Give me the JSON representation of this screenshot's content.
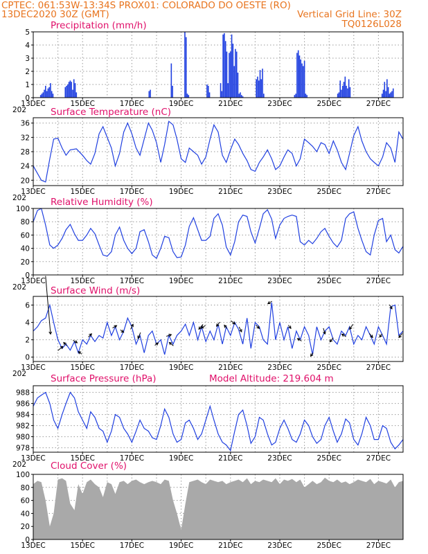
{
  "header": {
    "left_line1": "CPTEC:   061:53W-13:34S   PROX01: COLORADO DO OESTE (RO)",
    "left_line2": "13DEC2020 30Z (GMT)",
    "right_line2": "Vertical Grid Line: 30Z",
    "right_line3": "TQ0126L028"
  },
  "colors": {
    "header": "#e8741e",
    "panel_title": "#e0106a",
    "series": "#1f3fe0",
    "cloud": "#a9a9a9",
    "arrows": "#000000"
  },
  "x_axis": {
    "day_min": 13,
    "day_max": 28,
    "tick_labels": [
      "13DEC",
      "15DEC",
      "17DEC",
      "19DEC",
      "21DEC",
      "23DEC",
      "25DEC",
      "27DEC"
    ],
    "tick_days": [
      13,
      15,
      17,
      19,
      21,
      23,
      25,
      27
    ],
    "year_fragment": "202"
  },
  "chart_data": [
    {
      "type": "bar",
      "title": "Precipitation (mm/h)",
      "ylim": [
        0,
        5
      ],
      "yticks": [
        0,
        1,
        2,
        3,
        4,
        5
      ],
      "grid": true,
      "x": [
        13.3,
        13.35,
        13.4,
        13.45,
        13.5,
        13.55,
        13.6,
        13.65,
        13.7,
        13.75,
        13.8,
        14.3,
        14.35,
        14.4,
        14.45,
        14.5,
        14.55,
        14.6,
        14.65,
        14.7,
        14.75,
        17.7,
        17.75,
        18.6,
        18.65,
        19.15,
        19.2,
        19.25,
        19.3,
        20.05,
        20.1,
        20.15,
        20.6,
        20.65,
        20.7,
        20.75,
        20.8,
        20.85,
        20.9,
        20.95,
        21.0,
        21.05,
        21.1,
        21.15,
        21.2,
        21.25,
        21.3,
        21.35,
        21.4,
        21.45,
        21.5,
        22.05,
        22.1,
        22.15,
        22.2,
        22.25,
        22.3,
        22.35,
        23.6,
        23.65,
        23.7,
        23.75,
        23.8,
        23.85,
        23.9,
        23.95,
        24.0,
        24.05,
        24.1,
        25.35,
        25.4,
        25.45,
        25.5,
        25.55,
        25.6,
        25.65,
        25.7,
        25.75,
        25.8,
        25.85,
        27.15,
        27.2,
        27.25,
        27.3,
        27.35,
        27.4,
        27.45,
        27.5,
        27.55,
        27.6
      ],
      "values": [
        0.2,
        0.3,
        0.4,
        0.6,
        0.9,
        0.5,
        0.7,
        0.8,
        1.1,
        0.5,
        0.3,
        0.8,
        0.9,
        1.0,
        1.2,
        1.3,
        1.2,
        0.6,
        1.4,
        1.1,
        0.4,
        0.5,
        0.6,
        2.6,
        0.9,
        5.0,
        4.6,
        0.3,
        0.2,
        1.0,
        0.9,
        0.4,
        1.1,
        0.5,
        4.8,
        4.9,
        4.3,
        3.5,
        1.1,
        3.4,
        3.5,
        4.8,
        4.1,
        2.4,
        3.7,
        3.5,
        1.9,
        0.3,
        0.4,
        0.2,
        0.1,
        1.4,
        1.6,
        1.3,
        2.1,
        1.4,
        2.2,
        0.3,
        0.2,
        0.3,
        3.4,
        3.6,
        3.2,
        2.9,
        2.6,
        2.4,
        2.8,
        0.3,
        0.2,
        0.3,
        0.4,
        1.3,
        0.6,
        0.9,
        1.2,
        1.6,
        0.9,
        0.7,
        1.4,
        0.8,
        0.3,
        0.6,
        1.2,
        0.5,
        1.4,
        0.8,
        0.3,
        0.4,
        0.5,
        0.7
      ]
    },
    {
      "type": "line",
      "title": "Surface Temperature (nC)",
      "ylim": [
        18.5,
        37.5
      ],
      "yticks": [
        20,
        24,
        28,
        32,
        36
      ],
      "grid": true,
      "x": [
        13.0,
        13.33,
        13.5,
        13.67,
        13.83,
        14.0,
        14.17,
        14.33,
        14.5,
        14.75,
        15.0,
        15.17,
        15.33,
        15.5,
        15.67,
        15.83,
        16.0,
        16.17,
        16.33,
        16.5,
        16.67,
        16.83,
        17.0,
        17.17,
        17.33,
        17.5,
        17.67,
        17.83,
        18.0,
        18.17,
        18.33,
        18.5,
        18.67,
        18.83,
        19.0,
        19.17,
        19.33,
        19.5,
        19.67,
        19.83,
        20.0,
        20.17,
        20.33,
        20.5,
        20.67,
        20.83,
        21.0,
        21.17,
        21.33,
        21.5,
        21.67,
        21.83,
        22.0,
        22.17,
        22.33,
        22.5,
        22.67,
        22.83,
        23.0,
        23.17,
        23.33,
        23.5,
        23.67,
        23.83,
        24.0,
        24.17,
        24.33,
        24.5,
        24.67,
        24.83,
        25.0,
        25.17,
        25.33,
        25.5,
        25.67,
        25.83,
        26.0,
        26.17,
        26.33,
        26.5,
        26.67,
        26.83,
        27.0,
        27.17,
        27.33,
        27.5,
        27.67,
        27.83,
        28.0
      ],
      "values": [
        24.0,
        20.0,
        19.5,
        26.0,
        31.5,
        31.8,
        29.0,
        27.0,
        28.5,
        28.8,
        27.0,
        25.5,
        24.5,
        27.5,
        33.0,
        35.0,
        32.0,
        29.0,
        24.0,
        27.5,
        33.5,
        36.0,
        33.0,
        29.0,
        27.0,
        31.5,
        36.0,
        34.0,
        30.5,
        25.0,
        30.0,
        36.5,
        35.5,
        31.5,
        26.0,
        25.0,
        29.0,
        28.0,
        27.0,
        24.5,
        26.5,
        31.5,
        35.5,
        33.5,
        27.0,
        25.0,
        28.5,
        31.5,
        30.0,
        27.5,
        25.5,
        23.0,
        22.5,
        25.0,
        26.5,
        28.5,
        26.0,
        23.0,
        24.0,
        26.5,
        28.5,
        27.5,
        24.0,
        26.0,
        31.5,
        30.5,
        29.5,
        28.0,
        30.5,
        30.0,
        27.5,
        31.0,
        28.5,
        25.0,
        23.0,
        27.5,
        32.5,
        35.0,
        31.0,
        28.0,
        26.0,
        25.0,
        24.0,
        26.5,
        30.5,
        29.0,
        25.0,
        33.5,
        31.5
      ]
    },
    {
      "type": "line",
      "title": "Relative Humidity (%)",
      "ylim": [
        0,
        100
      ],
      "yticks": [
        0,
        20,
        40,
        60,
        80,
        100
      ],
      "grid": true,
      "x": [
        13.0,
        13.17,
        13.33,
        13.5,
        13.67,
        13.83,
        14.0,
        14.17,
        14.33,
        14.5,
        14.67,
        14.83,
        15.0,
        15.17,
        15.33,
        15.5,
        15.67,
        15.83,
        16.0,
        16.17,
        16.33,
        16.5,
        16.67,
        16.83,
        17.0,
        17.17,
        17.33,
        17.5,
        17.67,
        17.83,
        18.0,
        18.17,
        18.33,
        18.5,
        18.67,
        18.83,
        19.0,
        19.17,
        19.33,
        19.5,
        19.67,
        19.83,
        20.0,
        20.17,
        20.33,
        20.5,
        20.67,
        20.83,
        21.0,
        21.17,
        21.33,
        21.5,
        21.67,
        21.83,
        22.0,
        22.17,
        22.33,
        22.5,
        22.67,
        22.83,
        23.0,
        23.17,
        23.33,
        23.5,
        23.67,
        23.83,
        24.0,
        24.17,
        24.33,
        24.5,
        24.67,
        24.83,
        25.0,
        25.17,
        25.33,
        25.5,
        25.67,
        25.83,
        26.0,
        26.17,
        26.33,
        26.5,
        26.67,
        26.83,
        27.0,
        27.17,
        27.33,
        27.5,
        27.67,
        27.83,
        28.0
      ],
      "values": [
        80,
        97,
        100,
        75,
        45,
        40,
        45,
        55,
        68,
        76,
        62,
        52,
        52,
        60,
        70,
        62,
        45,
        30,
        28,
        35,
        60,
        72,
        52,
        40,
        32,
        40,
        65,
        68,
        50,
        30,
        25,
        40,
        58,
        56,
        35,
        26,
        27,
        45,
        73,
        86,
        68,
        52,
        52,
        58,
        85,
        92,
        75,
        42,
        30,
        50,
        80,
        90,
        88,
        65,
        48,
        70,
        92,
        98,
        84,
        55,
        75,
        85,
        88,
        90,
        88,
        50,
        45,
        52,
        47,
        55,
        65,
        70,
        58,
        48,
        42,
        52,
        85,
        92,
        95,
        70,
        52,
        35,
        30,
        60,
        82,
        85,
        50,
        60,
        38,
        33,
        43
      ]
    },
    {
      "type": "line",
      "title": "Surface Wind (m/s)",
      "ylim": [
        -0.5,
        7
      ],
      "yticks": [
        0,
        2,
        4,
        6
      ],
      "grid": true,
      "x": [
        13.0,
        13.17,
        13.33,
        13.5,
        13.67,
        13.83,
        14.0,
        14.17,
        14.33,
        14.5,
        14.67,
        14.83,
        15.0,
        15.17,
        15.33,
        15.5,
        15.67,
        15.83,
        16.0,
        16.17,
        16.33,
        16.5,
        16.67,
        16.83,
        17.0,
        17.17,
        17.33,
        17.5,
        17.67,
        17.83,
        18.0,
        18.17,
        18.33,
        18.5,
        18.67,
        18.83,
        19.0,
        19.17,
        19.33,
        19.5,
        19.67,
        19.83,
        20.0,
        20.17,
        20.33,
        20.5,
        20.67,
        20.83,
        21.0,
        21.17,
        21.33,
        21.5,
        21.67,
        21.83,
        22.0,
        22.17,
        22.33,
        22.5,
        22.67,
        22.83,
        23.0,
        23.17,
        23.33,
        23.5,
        23.67,
        23.83,
        24.0,
        24.17,
        24.33,
        24.5,
        24.67,
        24.83,
        25.0,
        25.17,
        25.33,
        25.5,
        25.67,
        25.83,
        26.0,
        26.17,
        26.33,
        26.5,
        26.67,
        26.83,
        27.0,
        27.17,
        27.33,
        27.5,
        27.67,
        27.83,
        28.0
      ],
      "values": [
        3.0,
        3.5,
        4.2,
        4.5,
        6.0,
        4.0,
        2.0,
        1.0,
        1.5,
        0.8,
        1.8,
        0.5,
        2.0,
        1.5,
        2.5,
        1.8,
        2.5,
        2.2,
        4.0,
        2.5,
        3.5,
        2.0,
        3.0,
        4.5,
        3.5,
        1.5,
        2.5,
        0.5,
        2.5,
        3.0,
        1.5,
        2.0,
        0.3,
        2.5,
        1.5,
        2.5,
        3.0,
        3.8,
        2.5,
        4.0,
        2.0,
        3.5,
        1.8,
        3.0,
        2.0,
        3.8,
        1.5,
        3.5,
        2.5,
        4.0,
        3.2,
        1.5,
        4.5,
        1.0,
        4.0,
        3.5,
        2.0,
        1.5,
        6.3,
        2.0,
        4.0,
        2.0,
        3.5,
        1.0,
        3.0,
        2.0,
        3.5,
        2.5,
        0.3,
        3.5,
        2.0,
        3.0,
        3.5,
        2.0,
        1.5,
        3.0,
        2.5,
        3.5,
        1.5,
        2.5,
        2.0,
        3.5,
        2.5,
        1.5,
        3.5,
        2.5,
        1.5,
        5.8,
        6.0,
        2.5,
        3.0
      ]
    },
    {
      "type": "line",
      "title": "Surface Pressure (hPa)",
      "annotation": "Model Altitude: 219.604 m",
      "ylim": [
        977.2,
        989.2
      ],
      "yticks": [
        978,
        980,
        982,
        984,
        986,
        988
      ],
      "grid": true,
      "x": [
        13.0,
        13.17,
        13.33,
        13.5,
        13.67,
        13.83,
        14.0,
        14.17,
        14.33,
        14.5,
        14.67,
        14.83,
        15.0,
        15.17,
        15.33,
        15.5,
        15.67,
        15.83,
        16.0,
        16.17,
        16.33,
        16.5,
        16.67,
        16.83,
        17.0,
        17.17,
        17.33,
        17.5,
        17.67,
        17.83,
        18.0,
        18.17,
        18.33,
        18.5,
        18.67,
        18.83,
        19.0,
        19.17,
        19.33,
        19.5,
        19.67,
        19.83,
        20.0,
        20.17,
        20.33,
        20.5,
        20.67,
        20.83,
        21.0,
        21.17,
        21.33,
        21.5,
        21.67,
        21.83,
        22.0,
        22.17,
        22.33,
        22.5,
        22.67,
        22.83,
        23.0,
        23.17,
        23.33,
        23.5,
        23.67,
        23.83,
        24.0,
        24.17,
        24.33,
        24.5,
        24.67,
        24.83,
        25.0,
        25.17,
        25.33,
        25.5,
        25.67,
        25.83,
        26.0,
        26.17,
        26.33,
        26.5,
        26.67,
        26.83,
        27.0,
        27.17,
        27.33,
        27.5,
        27.67,
        27.83,
        28.0
      ],
      "values": [
        985.5,
        987.0,
        987.5,
        988.0,
        986.0,
        983.0,
        981.5,
        984.0,
        986.0,
        988.0,
        987.0,
        984.5,
        983.0,
        981.5,
        984.5,
        983.5,
        981.5,
        981.0,
        979.0,
        981.0,
        984.0,
        983.5,
        981.5,
        980.5,
        979.0,
        981.0,
        983.0,
        981.5,
        981.0,
        979.8,
        979.5,
        982.0,
        985.0,
        983.5,
        980.5,
        979.0,
        979.5,
        982.5,
        983.0,
        981.5,
        979.5,
        980.5,
        983.0,
        985.5,
        983.0,
        980.5,
        979.0,
        978.5,
        977.5,
        981.0,
        984.0,
        984.8,
        982.0,
        978.8,
        980.0,
        983.5,
        983.0,
        980.5,
        978.5,
        979.0,
        981.5,
        983.0,
        981.5,
        979.5,
        979.0,
        980.5,
        983.0,
        982.0,
        980.0,
        978.8,
        979.5,
        982.0,
        983.5,
        981.0,
        979.0,
        980.5,
        983.2,
        982.5,
        979.5,
        978.5,
        980.5,
        983.5,
        982.0,
        979.5,
        979.5,
        982.0,
        981.5,
        979.0,
        977.8,
        978.5,
        979.5
      ]
    },
    {
      "type": "area",
      "title": "Cloud Cover (%)",
      "ylim": [
        0,
        100
      ],
      "yticks": [
        0,
        20,
        40,
        60,
        80,
        100
      ],
      "grid": true,
      "x": [
        13.0,
        13.17,
        13.33,
        13.5,
        13.67,
        13.83,
        14.0,
        14.17,
        14.33,
        14.5,
        14.67,
        14.83,
        15.0,
        15.17,
        15.33,
        15.5,
        15.67,
        15.83,
        16.0,
        16.17,
        16.33,
        16.5,
        16.67,
        16.83,
        17.0,
        17.17,
        17.33,
        17.5,
        17.67,
        17.83,
        18.0,
        18.17,
        18.33,
        18.5,
        18.67,
        18.83,
        19.0,
        19.17,
        19.33,
        19.5,
        19.67,
        19.83,
        20.0,
        20.17,
        20.33,
        20.5,
        20.67,
        20.83,
        21.0,
        21.17,
        21.33,
        21.5,
        21.67,
        21.83,
        22.0,
        22.17,
        22.33,
        22.5,
        22.67,
        22.83,
        23.0,
        23.17,
        23.33,
        23.5,
        23.67,
        23.83,
        24.0,
        24.17,
        24.33,
        24.5,
        24.67,
        24.83,
        25.0,
        25.17,
        25.33,
        25.5,
        25.67,
        25.83,
        26.0,
        26.17,
        26.33,
        26.5,
        26.67,
        26.83,
        27.0,
        27.17,
        27.33,
        27.5,
        27.67,
        27.83,
        28.0
      ],
      "values": [
        85,
        90,
        88,
        60,
        20,
        40,
        92,
        94,
        90,
        55,
        45,
        85,
        70,
        88,
        92,
        85,
        80,
        65,
        88,
        85,
        70,
        88,
        90,
        85,
        90,
        92,
        88,
        85,
        88,
        90,
        88,
        85,
        92,
        90,
        60,
        40,
        15,
        55,
        88,
        90,
        92,
        88,
        85,
        92,
        90,
        88,
        90,
        85,
        88,
        90,
        92,
        88,
        94,
        85,
        90,
        88,
        92,
        90,
        88,
        94,
        85,
        92,
        90,
        93,
        88,
        92,
        80,
        85,
        90,
        85,
        88,
        95,
        90,
        88,
        92,
        87,
        89,
        85,
        88,
        92,
        90,
        88,
        93,
        85,
        90,
        88,
        86,
        92,
        80,
        88,
        90
      ]
    }
  ]
}
